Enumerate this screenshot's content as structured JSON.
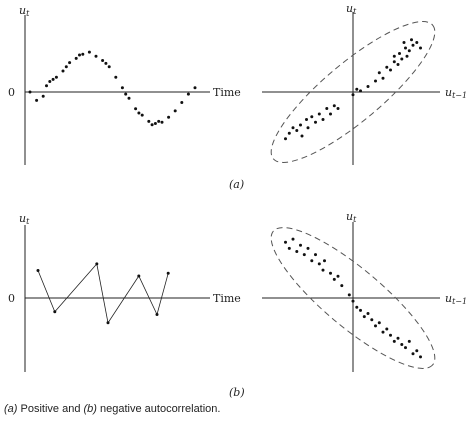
{
  "panel_a": {
    "label": "(a)",
    "time_series": {
      "y_label": "u",
      "y_label_sub": "t",
      "zero_label": "0",
      "x_label": "Time",
      "points": [
        [
          0,
          0
        ],
        [
          0.04,
          -0.2
        ],
        [
          0.08,
          -0.1
        ],
        [
          0.12,
          0.25
        ],
        [
          0.16,
          0.35
        ],
        [
          0.2,
          0.5
        ],
        [
          0.24,
          0.7
        ],
        [
          0.28,
          0.8
        ],
        [
          0.32,
          0.9
        ],
        [
          0.36,
          0.95
        ],
        [
          0.4,
          0.85
        ],
        [
          0.44,
          0.75
        ],
        [
          0.48,
          0.6
        ],
        [
          0.52,
          0.35
        ],
        [
          0.56,
          0.1
        ],
        [
          0.6,
          -0.15
        ],
        [
          0.64,
          -0.4
        ],
        [
          0.68,
          -0.55
        ],
        [
          0.72,
          -0.7
        ],
        [
          0.76,
          -0.75
        ],
        [
          0.8,
          -0.72
        ],
        [
          0.84,
          -0.6
        ],
        [
          0.88,
          -0.45
        ],
        [
          0.92,
          -0.25
        ],
        [
          0.96,
          -0.05
        ],
        [
          1,
          0.1
        ],
        [
          0.58,
          -0.05
        ],
        [
          0.66,
          -0.5
        ],
        [
          0.74,
          -0.78
        ],
        [
          0.78,
          -0.7
        ],
        [
          0.46,
          0.68
        ],
        [
          0.3,
          0.88
        ],
        [
          0.22,
          0.6
        ],
        [
          0.14,
          0.3
        ],
        [
          0.1,
          0.15
        ]
      ]
    },
    "scatter": {
      "y_label": "u",
      "y_label_sub": "t",
      "x_label": "u",
      "x_label_sub": "t−1",
      "correlation": "positive",
      "points": [
        [
          -0.9,
          -0.85
        ],
        [
          -0.85,
          -0.75
        ],
        [
          -0.8,
          -0.65
        ],
        [
          -0.75,
          -0.7
        ],
        [
          -0.7,
          -0.6
        ],
        [
          -0.68,
          -0.8
        ],
        [
          -0.62,
          -0.5
        ],
        [
          -0.6,
          -0.65
        ],
        [
          -0.55,
          -0.45
        ],
        [
          -0.5,
          -0.55
        ],
        [
          -0.45,
          -0.4
        ],
        [
          -0.4,
          -0.5
        ],
        [
          -0.35,
          -0.3
        ],
        [
          -0.3,
          -0.4
        ],
        [
          -0.25,
          -0.25
        ],
        [
          -0.2,
          -0.3
        ],
        [
          0.0,
          -0.05
        ],
        [
          0.05,
          0.05
        ],
        [
          0.1,
          0.02
        ],
        [
          0.2,
          0.1
        ],
        [
          0.3,
          0.2
        ],
        [
          0.35,
          0.35
        ],
        [
          0.4,
          0.25
        ],
        [
          0.45,
          0.45
        ],
        [
          0.5,
          0.4
        ],
        [
          0.55,
          0.55
        ],
        [
          0.55,
          0.65
        ],
        [
          0.6,
          0.5
        ],
        [
          0.62,
          0.7
        ],
        [
          0.65,
          0.6
        ],
        [
          0.7,
          0.8
        ],
        [
          0.72,
          0.65
        ],
        [
          0.75,
          0.75
        ],
        [
          0.8,
          0.85
        ],
        [
          0.85,
          0.9
        ],
        [
          0.9,
          0.8
        ],
        [
          0.78,
          0.95
        ],
        [
          0.68,
          0.9
        ]
      ]
    }
  },
  "panel_b": {
    "label": "(b)",
    "time_series": {
      "y_label": "u",
      "y_label_sub": "t",
      "zero_label": "0",
      "x_label": "Time",
      "points": [
        [
          0,
          0.5
        ],
        [
          0.12,
          -0.25
        ],
        [
          0.42,
          0.62
        ],
        [
          0.5,
          -0.45
        ],
        [
          0.72,
          0.4
        ],
        [
          0.85,
          -0.3
        ],
        [
          0.93,
          0.45
        ]
      ]
    },
    "scatter": {
      "y_label": "u",
      "y_label_sub": "t",
      "x_label": "u",
      "x_label_sub": "t−1",
      "correlation": "negative",
      "points": [
        [
          -0.9,
          0.9
        ],
        [
          -0.85,
          0.8
        ],
        [
          -0.8,
          0.95
        ],
        [
          -0.75,
          0.75
        ],
        [
          -0.7,
          0.85
        ],
        [
          -0.65,
          0.7
        ],
        [
          -0.6,
          0.8
        ],
        [
          -0.55,
          0.6
        ],
        [
          -0.5,
          0.7
        ],
        [
          -0.45,
          0.55
        ],
        [
          -0.4,
          0.45
        ],
        [
          -0.38,
          0.6
        ],
        [
          -0.3,
          0.4
        ],
        [
          -0.25,
          0.3
        ],
        [
          -0.2,
          0.35
        ],
        [
          -0.15,
          0.2
        ],
        [
          -0.05,
          0.05
        ],
        [
          0.0,
          -0.05
        ],
        [
          0.05,
          -0.15
        ],
        [
          0.1,
          -0.2
        ],
        [
          0.15,
          -0.3
        ],
        [
          0.2,
          -0.25
        ],
        [
          0.25,
          -0.35
        ],
        [
          0.3,
          -0.45
        ],
        [
          0.35,
          -0.4
        ],
        [
          0.4,
          -0.55
        ],
        [
          0.45,
          -0.5
        ],
        [
          0.5,
          -0.6
        ],
        [
          0.55,
          -0.7
        ],
        [
          0.6,
          -0.65
        ],
        [
          0.65,
          -0.75
        ],
        [
          0.7,
          -0.8
        ],
        [
          0.75,
          -0.7
        ],
        [
          0.8,
          -0.9
        ],
        [
          0.85,
          -0.85
        ],
        [
          0.9,
          -0.95
        ]
      ]
    }
  },
  "caption": {
    "part_a": "(a)",
    "text_a": " Positive and ",
    "part_b": "(b)",
    "text_b": " negative autocorrelation."
  }
}
